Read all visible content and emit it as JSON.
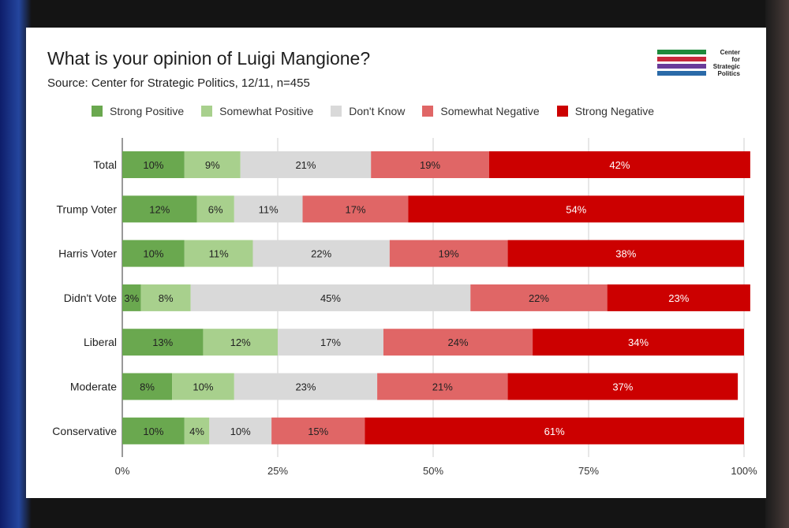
{
  "chart_data": {
    "type": "bar",
    "orientation": "horizontal",
    "stacked": true,
    "title": "What is your opinion of Luigi Mangione?",
    "subtitle": "Source: Center for Strategic Politics, 12/11, n=455",
    "categories": [
      "Total",
      "Trump Voter",
      "Harris Voter",
      "Didn't Vote",
      "Liberal",
      "Moderate",
      "Conservative"
    ],
    "series": [
      {
        "name": "Strong Positive",
        "color": "#6aa84f",
        "values": [
          10,
          12,
          10,
          3,
          13,
          8,
          10
        ],
        "labels": [
          "10%",
          "12%",
          "10%",
          "3%",
          "13%",
          "8%",
          "10%"
        ]
      },
      {
        "name": "Somewhat Positive",
        "color": "#a8d08d",
        "values": [
          9,
          6,
          11,
          8,
          12,
          10,
          4
        ],
        "labels": [
          "9%",
          "6%",
          "11%",
          "8%",
          "12%",
          "10%",
          "4%"
        ]
      },
      {
        "name": "Don't Know",
        "color": "#d9d9d9",
        "values": [
          21,
          11,
          22,
          45,
          17,
          23,
          10
        ],
        "labels": [
          "21%",
          "11%",
          "22%",
          "45%",
          "17%",
          "23%",
          "10%"
        ]
      },
      {
        "name": "Somewhat Negative",
        "color": "#e06666",
        "values": [
          19,
          17,
          19,
          22,
          24,
          21,
          15
        ],
        "labels": [
          "19%",
          "17%",
          "19%",
          "22%",
          "24%",
          "21%",
          "15%"
        ]
      },
      {
        "name": "Strong Negative",
        "color": "#cc0000",
        "values": [
          42,
          54,
          38,
          23,
          34,
          37,
          61
        ],
        "labels": [
          "42%",
          "54%",
          "38%",
          "23%",
          "34%",
          "37%",
          "61%"
        ]
      }
    ],
    "xlim": [
      0,
      100
    ],
    "xticks": [
      0,
      25,
      50,
      75,
      100
    ],
    "xtick_labels": [
      "0%",
      "25%",
      "50%",
      "75%",
      "100%"
    ],
    "grid": true,
    "legend": "top"
  },
  "logo": {
    "lines": [
      "Center",
      "for",
      "Strategic",
      "Politics"
    ],
    "colors": [
      "#1e8a3c",
      "#c8283c",
      "#6a3c9a",
      "#2a6aa8"
    ]
  }
}
